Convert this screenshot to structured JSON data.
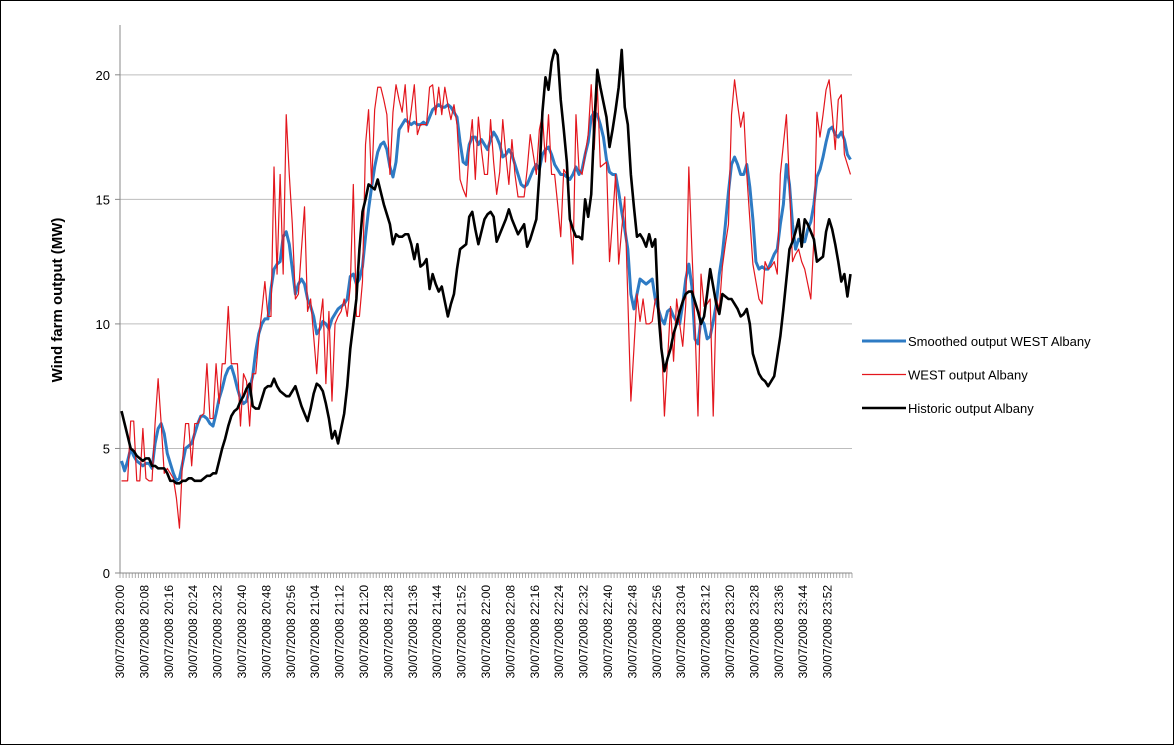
{
  "chart_data": {
    "type": "line",
    "y_label": "Wind farm output (MW)",
    "ylim": [
      0,
      22
    ],
    "yticks": [
      0,
      5,
      10,
      15,
      20
    ],
    "grid": true,
    "legend": "right",
    "categories": [
      "30/07/2008 20:00",
      null,
      null,
      null,
      null,
      null,
      null,
      null,
      "30/07/2008 20:08",
      null,
      null,
      null,
      null,
      null,
      null,
      null,
      "30/07/2008 20:16",
      null,
      null,
      null,
      null,
      null,
      null,
      null,
      "30/07/2008 20:24",
      null,
      null,
      null,
      null,
      null,
      null,
      null,
      "30/07/2008 20:32",
      null,
      null,
      null,
      null,
      null,
      null,
      null,
      "30/07/2008 20:40",
      null,
      null,
      null,
      null,
      null,
      null,
      null,
      "30/07/2008 20:48",
      null,
      null,
      null,
      null,
      null,
      null,
      null,
      "30/07/2008 20:56",
      null,
      null,
      null,
      null,
      null,
      null,
      null,
      "30/07/2008 21:04",
      null,
      null,
      null,
      null,
      null,
      null,
      null,
      "30/07/2008 21:12",
      null,
      null,
      null,
      null,
      null,
      null,
      null,
      "30/07/2008 21:20",
      null,
      null,
      null,
      null,
      null,
      null,
      null,
      "30/07/2008 21:28",
      null,
      null,
      null,
      null,
      null,
      null,
      null,
      "30/07/2008 21:36",
      null,
      null,
      null,
      null,
      null,
      null,
      null,
      "30/07/2008 21:44",
      null,
      null,
      null,
      null,
      null,
      null,
      null,
      "30/07/2008 21:52",
      null,
      null,
      null,
      null,
      null,
      null,
      null,
      "30/07/2008 22:00",
      null,
      null,
      null,
      null,
      null,
      null,
      null,
      "30/07/2008 22:08",
      null,
      null,
      null,
      null,
      null,
      null,
      null,
      "30/07/2008 22:16",
      null,
      null,
      null,
      null,
      null,
      null,
      null,
      "30/07/2008 22:24",
      null,
      null,
      null,
      null,
      null,
      null,
      null,
      "30/07/2008 22:32",
      null,
      null,
      null,
      null,
      null,
      null,
      null,
      "30/07/2008 22:40",
      null,
      null,
      null,
      null,
      null,
      null,
      null,
      "30/07/2008 22:48",
      null,
      null,
      null,
      null,
      null,
      null,
      null,
      "30/07/2008 22:56",
      null,
      null,
      null,
      null,
      null,
      null,
      null,
      "30/07/2008 23:04",
      null,
      null,
      null,
      null,
      null,
      null,
      null,
      "30/07/2008 23:12",
      null,
      null,
      null,
      null,
      null,
      null,
      null,
      "30/07/2008 23:20",
      null,
      null,
      null,
      null,
      null,
      null,
      null,
      "30/07/2008 23:28",
      null,
      null,
      null,
      null,
      null,
      null,
      null,
      "30/07/2008 23:36",
      null,
      null,
      null,
      null,
      null,
      null,
      null,
      "30/07/2008 23:44",
      null,
      null,
      null,
      null,
      null,
      null,
      null,
      "30/07/2008 23:52",
      null,
      null,
      null,
      null,
      null,
      null,
      null
    ],
    "series": [
      {
        "name": "Smoothed output WEST Albany",
        "color": "#2e7bc4",
        "width": 3,
        "values": [
          4.5,
          4.1,
          4.5,
          5.0,
          4.7,
          4.5,
          4.4,
          4.3,
          4.4,
          4.4,
          4.2,
          5.2,
          5.8,
          6.0,
          5.6,
          4.8,
          4.4,
          4.0,
          3.7,
          3.8,
          4.4,
          5.0,
          5.1,
          5.2,
          5.6,
          6.0,
          6.3,
          6.3,
          6.2,
          6.0,
          5.9,
          6.4,
          7.0,
          7.4,
          7.9,
          8.2,
          8.3,
          7.9,
          7.4,
          7.0,
          6.8,
          6.9,
          7.4,
          7.9,
          8.9,
          9.6,
          10.0,
          10.2,
          10.2,
          11.4,
          12.2,
          12.4,
          12.5,
          13.5,
          13.7,
          13.2,
          12.2,
          11.2,
          11.6,
          11.8,
          11.6,
          11.0,
          10.7,
          10.3,
          9.6,
          9.8,
          10.1,
          10.0,
          9.8,
          10.2,
          10.4,
          10.6,
          10.7,
          10.8,
          11.0,
          11.9,
          12.0,
          11.6,
          11.8,
          12.3,
          13.5,
          14.6,
          15.5,
          16.3,
          16.9,
          17.2,
          17.3,
          17.0,
          16.3,
          15.9,
          16.5,
          17.8,
          18.0,
          18.2,
          18.1,
          18.0,
          18.1,
          18.0,
          18.0,
          18.1,
          18.0,
          18.3,
          18.6,
          18.7,
          18.8,
          18.7,
          18.7,
          18.8,
          18.7,
          18.5,
          18.3,
          17.3,
          16.5,
          16.4,
          17.2,
          17.5,
          17.5,
          17.2,
          17.4,
          17.2,
          17.0,
          17.4,
          17.7,
          17.5,
          17.2,
          16.7,
          16.8,
          17.0,
          16.8,
          16.4,
          16.0,
          15.6,
          15.5,
          15.6,
          15.9,
          16.2,
          16.4,
          16.2,
          16.8,
          17.0,
          17.1,
          16.8,
          16.4,
          16.2,
          16.0,
          16.0,
          15.9,
          15.8,
          16.0,
          16.3,
          16.0,
          16.2,
          16.8,
          17.3,
          18.3,
          18.5,
          18.4,
          18.0,
          17.5,
          16.6,
          16.1,
          16.0,
          16.0,
          15.3,
          14.5,
          13.8,
          13.0,
          11.2,
          10.6,
          11.2,
          11.8,
          11.7,
          11.6,
          11.7,
          11.8,
          11.0,
          10.6,
          10.2,
          10.0,
          10.5,
          10.6,
          10.3,
          10.1,
          10.0,
          10.8,
          11.8,
          12.4,
          11.5,
          9.4,
          9.2,
          10.2,
          10.0,
          9.4,
          9.5,
          10.1,
          10.8,
          12.0,
          12.8,
          14.0,
          15.3,
          16.4,
          16.7,
          16.4,
          16.0,
          16.0,
          16.4,
          15.5,
          14.2,
          12.5,
          12.2,
          12.3,
          12.2,
          12.2,
          12.5,
          12.8,
          13.0,
          14.0,
          14.8,
          16.4,
          15.6,
          14.0,
          13.0,
          13.4,
          13.3,
          13.3,
          13.8,
          14.1,
          14.8,
          15.9,
          16.2,
          16.7,
          17.3,
          17.8,
          17.9,
          17.6,
          17.5,
          17.7,
          17.4,
          16.8,
          16.6
        ]
      },
      {
        "name": "WEST output Albany",
        "color": "#e3161d",
        "width": 1.2,
        "values": [
          3.7,
          3.7,
          3.7,
          6.1,
          6.1,
          3.7,
          3.7,
          5.8,
          3.8,
          3.7,
          3.7,
          6.0,
          7.8,
          6.0,
          4.0,
          4.2,
          4.0,
          3.8,
          3.0,
          1.8,
          4.5,
          6.0,
          6.0,
          4.3,
          6.0,
          6.0,
          6.3,
          6.4,
          8.4,
          6.2,
          6.2,
          8.4,
          6.8,
          8.4,
          8.4,
          10.7,
          8.4,
          8.4,
          8.4,
          5.9,
          8.0,
          7.7,
          5.9,
          8.0,
          8.0,
          9.4,
          10.5,
          11.7,
          10.3,
          10.3,
          16.3,
          12.0,
          16.0,
          12.0,
          18.4,
          16.0,
          14.0,
          11.0,
          11.2,
          13.0,
          14.7,
          10.5,
          11.0,
          9.5,
          8.0,
          10.0,
          11.0,
          7.6,
          10.5,
          6.9,
          10.0,
          10.3,
          10.5,
          11.0,
          10.3,
          11.5,
          15.6,
          10.3,
          10.3,
          11.7,
          17.2,
          18.6,
          15.6,
          18.6,
          19.5,
          19.5,
          19.0,
          18.4,
          16.0,
          18.5,
          19.6,
          19.0,
          18.5,
          19.6,
          17.7,
          18.6,
          19.6,
          17.6,
          18.0,
          18.0,
          18.0,
          19.5,
          19.6,
          18.4,
          19.5,
          18.4,
          19.5,
          18.8,
          18.2,
          18.8,
          18.0,
          15.8,
          15.4,
          15.1,
          17.0,
          18.2,
          15.8,
          18.3,
          17.0,
          16.0,
          16.0,
          18.2,
          16.5,
          15.2,
          16.1,
          18.2,
          16.8,
          15.6,
          17.4,
          16.0,
          15.1,
          15.1,
          15.1,
          16.2,
          17.6,
          16.8,
          16.0,
          17.8,
          18.4,
          16.5,
          18.4,
          16.0,
          16.0,
          14.8,
          13.5,
          16.2,
          16.0,
          14.2,
          12.4,
          18.4,
          16.2,
          16.0,
          16.8,
          17.6,
          19.6,
          17.0,
          19.6,
          16.3,
          16.4,
          16.5,
          12.5,
          14.2,
          16.0,
          12.4,
          13.8,
          15.1,
          11.0,
          6.9,
          9.0,
          11.2,
          10.1,
          11.0,
          10.0,
          10.0,
          10.1,
          11.0,
          11.0,
          9.6,
          6.3,
          8.5,
          10.7,
          8.5,
          11.0,
          10.0,
          9.1,
          10.8,
          16.3,
          13.0,
          10.0,
          6.3,
          12.0,
          10.7,
          10.8,
          11.0,
          6.3,
          11.0,
          10.6,
          12.3,
          13.2,
          14.0,
          18.4,
          19.8,
          18.8,
          17.9,
          18.5,
          16.0,
          14.2,
          12.4,
          11.7,
          11.0,
          10.8,
          12.5,
          12.2,
          12.3,
          12.5,
          12.0,
          16.0,
          17.2,
          18.4,
          15.6,
          12.5,
          12.8,
          13.0,
          12.5,
          12.2,
          11.6,
          11.0,
          13.4,
          18.5,
          17.5,
          18.4,
          19.4,
          19.8,
          18.5,
          17.0,
          19.0,
          19.2,
          16.8,
          16.4,
          16.0
        ]
      },
      {
        "name": "Historic output Albany",
        "color": "#000000",
        "width": 2.6,
        "values": [
          6.5,
          6.0,
          5.5,
          5.0,
          4.9,
          4.7,
          4.6,
          4.5,
          4.6,
          4.6,
          4.3,
          4.3,
          4.2,
          4.2,
          4.2,
          4.0,
          3.7,
          3.7,
          3.6,
          3.6,
          3.7,
          3.7,
          3.8,
          3.8,
          3.7,
          3.7,
          3.7,
          3.8,
          3.9,
          3.9,
          4.0,
          4.0,
          4.5,
          5.0,
          5.4,
          5.9,
          6.3,
          6.5,
          6.6,
          6.9,
          7.1,
          7.4,
          7.6,
          6.7,
          6.6,
          6.6,
          7.0,
          7.4,
          7.5,
          7.5,
          7.8,
          7.5,
          7.3,
          7.2,
          7.1,
          7.1,
          7.3,
          7.5,
          7.1,
          6.7,
          6.4,
          6.1,
          6.6,
          7.2,
          7.6,
          7.5,
          7.3,
          6.8,
          6.2,
          5.4,
          5.7,
          5.2,
          5.8,
          6.4,
          7.5,
          9.0,
          10.0,
          11.0,
          13.0,
          14.5,
          15.0,
          15.6,
          15.5,
          15.4,
          15.8,
          15.3,
          14.8,
          14.4,
          14.0,
          13.2,
          13.6,
          13.5,
          13.5,
          13.6,
          13.6,
          13.2,
          12.6,
          13.2,
          12.3,
          12.4,
          12.6,
          11.4,
          12.0,
          11.6,
          11.3,
          11.5,
          10.9,
          10.3,
          10.8,
          11.2,
          12.2,
          13.0,
          13.1,
          13.2,
          14.3,
          14.5,
          13.8,
          13.2,
          13.7,
          14.2,
          14.4,
          14.5,
          14.3,
          13.3,
          13.6,
          13.9,
          14.2,
          14.6,
          14.2,
          13.9,
          13.6,
          13.8,
          14.0,
          13.1,
          13.4,
          13.8,
          14.2,
          16.0,
          18.5,
          19.9,
          19.4,
          20.5,
          21.0,
          20.8,
          19.0,
          17.8,
          16.5,
          14.2,
          13.8,
          13.5,
          13.5,
          13.4,
          15.0,
          14.3,
          15.2,
          18.0,
          20.2,
          19.5,
          18.9,
          18.3,
          17.1,
          17.8,
          18.6,
          19.5,
          21.0,
          18.7,
          18.0,
          16.0,
          14.7,
          13.5,
          13.6,
          13.4,
          13.1,
          13.6,
          13.1,
          13.4,
          10.5,
          9.0,
          8.1,
          8.6,
          9.0,
          9.6,
          10.0,
          10.5,
          10.9,
          11.2,
          11.3,
          11.3,
          10.9,
          10.5,
          10.0,
          10.3,
          11.2,
          12.2,
          11.5,
          10.8,
          10.4,
          11.2,
          11.1,
          11.0,
          11.0,
          10.8,
          10.6,
          10.3,
          10.4,
          10.6,
          10.0,
          8.8,
          8.4,
          8.0,
          7.8,
          7.7,
          7.5,
          7.7,
          7.9,
          8.7,
          9.5,
          10.6,
          11.8,
          13.0,
          13.3,
          13.7,
          14.2,
          13.1,
          14.2,
          14.0,
          13.7,
          13.4,
          12.5,
          12.6,
          12.7,
          13.7,
          14.2,
          13.8,
          13.2,
          12.5,
          11.7,
          12.0,
          11.1,
          12.0
        ]
      }
    ]
  }
}
